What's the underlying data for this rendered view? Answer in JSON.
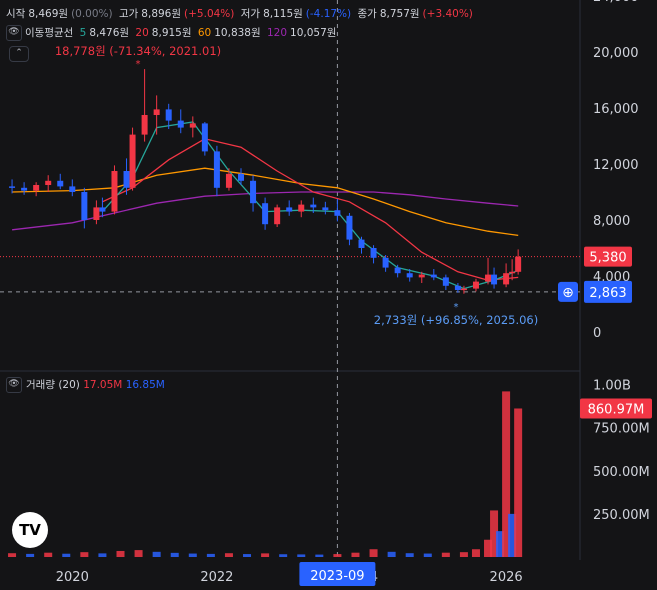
{
  "ohlc_bar": {
    "open_label": "시작",
    "open_value": "8,469원",
    "open_change": "(0.00%)",
    "high_label": "고가",
    "high_value": "8,896원",
    "high_change": "(+5.04%)",
    "low_label": "저가",
    "low_value": "8,115원",
    "low_change": "(-4.17%)",
    "close_label": "종가",
    "close_value": "8,757원",
    "close_change": "(+3.40%)"
  },
  "ma_bar": {
    "title": "이동평균선",
    "ma5_period": "5",
    "ma5_value": "8,476원",
    "ma20_period": "20",
    "ma20_value": "8,915원",
    "ma60_period": "60",
    "ma60_value": "10,838원",
    "ma120_period": "120",
    "ma120_value": "10,057원"
  },
  "volume_bar": {
    "title": "거래량 (20)",
    "value1": "17.05M",
    "value2": "16.85M"
  },
  "colors": {
    "up": "#f23645",
    "down": "#2962ff",
    "ma5": "#26a69a",
    "ma20": "#f23645",
    "ma60": "#ff9800",
    "ma120": "#9c27b0",
    "background": "#141416"
  },
  "icons": {
    "eye_icon": "eye-icon",
    "collapse_icon": "chevron-up-icon",
    "add_icon": "plus-circle-icon"
  },
  "chart_data": {
    "type": "candlestick",
    "price_axis": {
      "ticks": [
        "24,000",
        "20,000",
        "16,000",
        "12,000",
        "8,000",
        "4,000",
        "0"
      ],
      "min": 0,
      "max": 24000
    },
    "volume_axis": {
      "ticks": [
        "1.00B",
        "750.00M",
        "500.00M",
        "250.00M"
      ]
    },
    "time_axis": {
      "ticks": [
        "2020",
        "2022",
        "2024",
        "2026"
      ],
      "crosshair_label": "2023-09"
    },
    "last_price_label": "5,380",
    "crosshair_price_label": "2,863",
    "last_volume_label": "860.97M",
    "high_annotation": "18,778원 (-71.34%, 2021.01)",
    "low_annotation": "2,733원 (+96.85%, 2025.06)",
    "candles": [
      {
        "x": "2019-03",
        "o": 10400,
        "h": 10900,
        "l": 9900,
        "c": 10300
      },
      {
        "x": "2019-05",
        "o": 10300,
        "h": 10700,
        "l": 9800,
        "c": 10100
      },
      {
        "x": "2019-07",
        "o": 10100,
        "h": 10700,
        "l": 9700,
        "c": 10500
      },
      {
        "x": "2019-09",
        "o": 10500,
        "h": 11200,
        "l": 10000,
        "c": 10800
      },
      {
        "x": "2019-11",
        "o": 10800,
        "h": 11300,
        "l": 10200,
        "c": 10400
      },
      {
        "x": "2020-01",
        "o": 10400,
        "h": 10900,
        "l": 9700,
        "c": 10000
      },
      {
        "x": "2020-03",
        "o": 10000,
        "h": 10300,
        "l": 7400,
        "c": 8000
      },
      {
        "x": "2020-05",
        "o": 8000,
        "h": 9400,
        "l": 7700,
        "c": 8900
      },
      {
        "x": "2020-06",
        "o": 8900,
        "h": 9600,
        "l": 8200,
        "c": 8600
      },
      {
        "x": "2020-08",
        "o": 8600,
        "h": 11900,
        "l": 8400,
        "c": 11500
      },
      {
        "x": "2020-10",
        "o": 11500,
        "h": 12400,
        "l": 9800,
        "c": 10300
      },
      {
        "x": "2020-11",
        "o": 10300,
        "h": 14600,
        "l": 10100,
        "c": 14100
      },
      {
        "x": "2021-01",
        "o": 14100,
        "h": 18778,
        "l": 13600,
        "c": 15500
      },
      {
        "x": "2021-03",
        "o": 15500,
        "h": 16900,
        "l": 14100,
        "c": 15900
      },
      {
        "x": "2021-05",
        "o": 15900,
        "h": 16300,
        "l": 14500,
        "c": 15100
      },
      {
        "x": "2021-07",
        "o": 15100,
        "h": 15900,
        "l": 14200,
        "c": 14600
      },
      {
        "x": "2021-09",
        "o": 14600,
        "h": 15400,
        "l": 13900,
        "c": 14900
      },
      {
        "x": "2021-11",
        "o": 14900,
        "h": 15000,
        "l": 12600,
        "c": 12900
      },
      {
        "x": "2022-01",
        "o": 12900,
        "h": 13300,
        "l": 9700,
        "c": 10300
      },
      {
        "x": "2022-03",
        "o": 10300,
        "h": 11700,
        "l": 10100,
        "c": 11300
      },
      {
        "x": "2022-05",
        "o": 11300,
        "h": 11700,
        "l": 10500,
        "c": 10800
      },
      {
        "x": "2022-07",
        "o": 10800,
        "h": 11200,
        "l": 8600,
        "c": 9200
      },
      {
        "x": "2022-09",
        "o": 9200,
        "h": 9600,
        "l": 7300,
        "c": 7700
      },
      {
        "x": "2022-11",
        "o": 7700,
        "h": 9100,
        "l": 7500,
        "c": 8900
      },
      {
        "x": "2023-01",
        "o": 8900,
        "h": 9400,
        "l": 8300,
        "c": 8600
      },
      {
        "x": "2023-03",
        "o": 8600,
        "h": 9400,
        "l": 8200,
        "c": 9100
      },
      {
        "x": "2023-05",
        "o": 9100,
        "h": 9600,
        "l": 8500,
        "c": 8900
      },
      {
        "x": "2023-07",
        "o": 8900,
        "h": 9300,
        "l": 8400,
        "c": 8700
      },
      {
        "x": "2023-09",
        "o": 8700,
        "h": 9500,
        "l": 7900,
        "c": 8300
      },
      {
        "x": "2023-11",
        "o": 8300,
        "h": 8500,
        "l": 6200,
        "c": 6600
      },
      {
        "x": "2024-01",
        "o": 6600,
        "h": 6800,
        "l": 5600,
        "c": 6000
      },
      {
        "x": "2024-03",
        "o": 6000,
        "h": 6200,
        "l": 4900,
        "c": 5300
      },
      {
        "x": "2024-05",
        "o": 5300,
        "h": 5500,
        "l": 4300,
        "c": 4600
      },
      {
        "x": "2024-07",
        "o": 4600,
        "h": 4800,
        "l": 3900,
        "c": 4200
      },
      {
        "x": "2024-09",
        "o": 4200,
        "h": 4500,
        "l": 3600,
        "c": 3900
      },
      {
        "x": "2024-11",
        "o": 3900,
        "h": 4300,
        "l": 3500,
        "c": 4100
      },
      {
        "x": "2025-01",
        "o": 4100,
        "h": 4500,
        "l": 3700,
        "c": 3900
      },
      {
        "x": "2025-03",
        "o": 3900,
        "h": 4100,
        "l": 3000,
        "c": 3300
      },
      {
        "x": "2025-05",
        "o": 3300,
        "h": 3500,
        "l": 2800,
        "c": 3000
      },
      {
        "x": "2025-06",
        "o": 3000,
        "h": 3300,
        "l": 2733,
        "c": 3100
      },
      {
        "x": "2025-08",
        "o": 3100,
        "h": 3800,
        "l": 2900,
        "c": 3600
      },
      {
        "x": "2025-10",
        "o": 3600,
        "h": 5300,
        "l": 3400,
        "c": 4100
      },
      {
        "x": "2025-11",
        "o": 4100,
        "h": 4600,
        "l": 3100,
        "c": 3400
      },
      {
        "x": "2026-01",
        "o": 3400,
        "h": 4900,
        "l": 3200,
        "c": 4200
      },
      {
        "x": "2026-02",
        "o": 4200,
        "h": 5200,
        "l": 3700,
        "c": 4300
      },
      {
        "x": "2026-03",
        "o": 4300,
        "h": 5900,
        "l": 4100,
        "c": 5380
      }
    ],
    "moving_averages": [
      {
        "name": "5",
        "period": 5,
        "color": "#26a69a"
      },
      {
        "name": "20",
        "period": 20,
        "color": "#f23645"
      },
      {
        "name": "60",
        "period": 60,
        "color": "#ff9800"
      },
      {
        "name": "120",
        "period": 120,
        "color": "#9c27b0"
      }
    ],
    "ma60_points": [
      {
        "x": "2019-03",
        "y": 10000
      },
      {
        "x": "2020-01",
        "y": 10100
      },
      {
        "x": "2020-08",
        "y": 10300
      },
      {
        "x": "2021-03",
        "y": 11200
      },
      {
        "x": "2021-11",
        "y": 11700
      },
      {
        "x": "2022-07",
        "y": 11200
      },
      {
        "x": "2023-03",
        "y": 10600
      },
      {
        "x": "2023-09",
        "y": 10300
      },
      {
        "x": "2024-03",
        "y": 9500
      },
      {
        "x": "2024-09",
        "y": 8600
      },
      {
        "x": "2025-03",
        "y": 7800
      },
      {
        "x": "2025-10",
        "y": 7200
      },
      {
        "x": "2026-03",
        "y": 6900
      }
    ],
    "ma120_points": [
      {
        "x": "2019-03",
        "y": 7300
      },
      {
        "x": "2020-01",
        "y": 7800
      },
      {
        "x": "2020-08",
        "y": 8500
      },
      {
        "x": "2021-03",
        "y": 9200
      },
      {
        "x": "2021-11",
        "y": 9700
      },
      {
        "x": "2022-07",
        "y": 9900
      },
      {
        "x": "2023-03",
        "y": 10000
      },
      {
        "x": "2023-09",
        "y": 10000
      },
      {
        "x": "2024-03",
        "y": 10000
      },
      {
        "x": "2024-09",
        "y": 9800
      },
      {
        "x": "2025-03",
        "y": 9500
      },
      {
        "x": "2025-10",
        "y": 9200
      },
      {
        "x": "2026-03",
        "y": 9000
      }
    ],
    "ma20_points": [
      {
        "x": "2020-06",
        "y": 9300
      },
      {
        "x": "2020-11",
        "y": 10300
      },
      {
        "x": "2021-05",
        "y": 12300
      },
      {
        "x": "2021-11",
        "y": 13800
      },
      {
        "x": "2022-05",
        "y": 13200
      },
      {
        "x": "2022-11",
        "y": 11500
      },
      {
        "x": "2023-05",
        "y": 10000
      },
      {
        "x": "2023-11",
        "y": 9300
      },
      {
        "x": "2024-05",
        "y": 7800
      },
      {
        "x": "2024-11",
        "y": 5700
      },
      {
        "x": "2025-05",
        "y": 4300
      },
      {
        "x": "2025-10",
        "y": 3700
      },
      {
        "x": "2026-03",
        "y": 3900
      }
    ],
    "ma5_points": [
      {
        "x": "2020-06",
        "y": 8600
      },
      {
        "x": "2020-11",
        "y": 11000
      },
      {
        "x": "2021-03",
        "y": 14600
      },
      {
        "x": "2021-09",
        "y": 15000
      },
      {
        "x": "2022-03",
        "y": 11500
      },
      {
        "x": "2022-09",
        "y": 8600
      },
      {
        "x": "2023-03",
        "y": 8700
      },
      {
        "x": "2023-09",
        "y": 8600
      },
      {
        "x": "2024-01",
        "y": 6500
      },
      {
        "x": "2024-07",
        "y": 4600
      },
      {
        "x": "2025-01",
        "y": 4000
      },
      {
        "x": "2025-06",
        "y": 3100
      },
      {
        "x": "2025-11",
        "y": 3700
      },
      {
        "x": "2026-03",
        "y": 4400
      }
    ],
    "volumes_millions": [
      {
        "x": "2019-03",
        "v": 22
      },
      {
        "x": "2019-06",
        "v": 18
      },
      {
        "x": "2019-09",
        "v": 25
      },
      {
        "x": "2019-12",
        "v": 19
      },
      {
        "x": "2020-03",
        "v": 28
      },
      {
        "x": "2020-06",
        "v": 21
      },
      {
        "x": "2020-09",
        "v": 35
      },
      {
        "x": "2020-12",
        "v": 40
      },
      {
        "x": "2021-03",
        "v": 30
      },
      {
        "x": "2021-06",
        "v": 24
      },
      {
        "x": "2021-09",
        "v": 20
      },
      {
        "x": "2021-12",
        "v": 18
      },
      {
        "x": "2022-03",
        "v": 22
      },
      {
        "x": "2022-06",
        "v": 17
      },
      {
        "x": "2022-09",
        "v": 21
      },
      {
        "x": "2022-12",
        "v": 16
      },
      {
        "x": "2023-03",
        "v": 15
      },
      {
        "x": "2023-06",
        "v": 14
      },
      {
        "x": "2023-09",
        "v": 17
      },
      {
        "x": "2023-12",
        "v": 25
      },
      {
        "x": "2024-03",
        "v": 45
      },
      {
        "x": "2024-06",
        "v": 30
      },
      {
        "x": "2024-09",
        "v": 22
      },
      {
        "x": "2024-12",
        "v": 20
      },
      {
        "x": "2025-03",
        "v": 25
      },
      {
        "x": "2025-06",
        "v": 28
      },
      {
        "x": "2025-08",
        "v": 45
      },
      {
        "x": "2025-10",
        "v": 100
      },
      {
        "x": "2025-11",
        "v": 270
      },
      {
        "x": "2025-12",
        "v": 150
      },
      {
        "x": "2026-01",
        "v": 960
      },
      {
        "x": "2026-02",
        "v": 250
      },
      {
        "x": "2026-03",
        "v": 860.97
      }
    ]
  }
}
